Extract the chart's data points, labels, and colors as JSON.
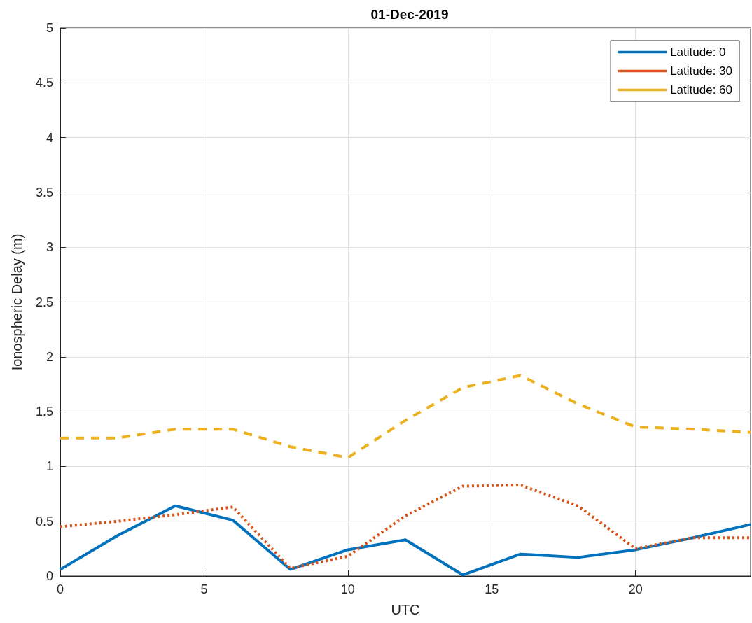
{
  "chart_data": {
    "type": "line",
    "title": "01-Dec-2019",
    "xlabel": "UTC",
    "ylabel": "Ionospheric Delay (m)",
    "x": [
      0,
      2,
      4,
      6,
      8,
      10,
      12,
      14,
      16,
      18,
      20,
      22,
      24
    ],
    "series": [
      {
        "name": "Latitude: 0",
        "color": "#0072bd",
        "line_style": "solid",
        "values": [
          0.06,
          0.37,
          0.64,
          0.51,
          0.06,
          0.24,
          0.33,
          0.01,
          0.2,
          0.17,
          0.24,
          0.35,
          0.47
        ]
      },
      {
        "name": "Latitude: 30",
        "color": "#d95319",
        "line_style": "dotted",
        "values": [
          0.45,
          0.5,
          0.56,
          0.63,
          0.07,
          0.18,
          0.55,
          0.82,
          0.83,
          0.64,
          0.25,
          0.35,
          0.35
        ]
      },
      {
        "name": "Latitude: 60",
        "color": "#edb120",
        "line_style": "dashed",
        "values": [
          1.26,
          1.26,
          1.34,
          1.34,
          1.18,
          1.08,
          1.42,
          1.72,
          1.83,
          1.57,
          1.36,
          1.34,
          1.31
        ]
      }
    ],
    "xlim": [
      0,
      24
    ],
    "xticks": [
      0,
      5,
      10,
      15,
      20
    ],
    "ylim": [
      0,
      5
    ],
    "yticks": [
      0,
      0.5,
      1,
      1.5,
      2,
      2.5,
      3,
      3.5,
      4,
      4.5,
      5
    ],
    "grid": true,
    "legend": "top right",
    "marker": "none"
  }
}
